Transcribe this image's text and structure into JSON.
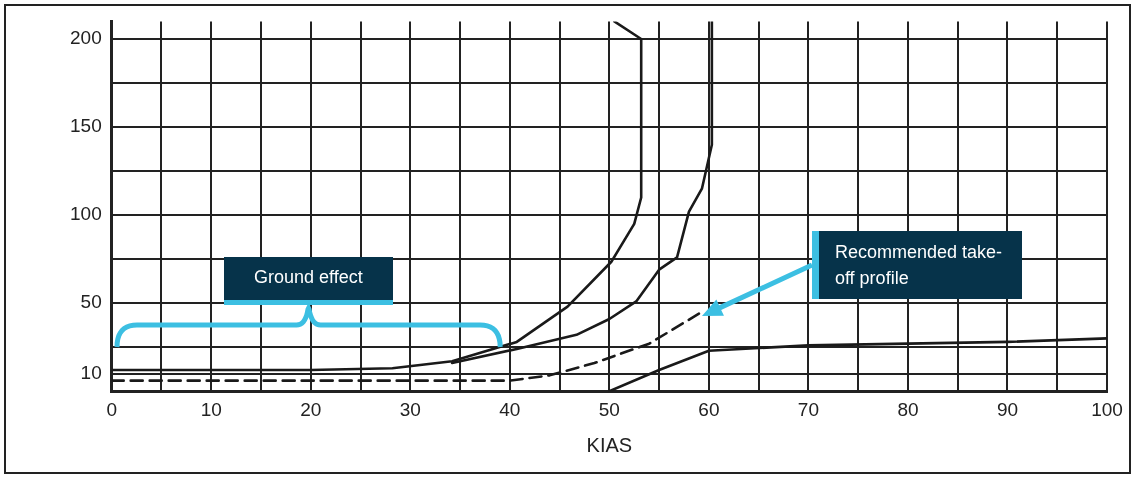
{
  "chart_data": {
    "type": "line",
    "xlabel": "KIAS",
    "xlim": [
      0,
      100
    ],
    "ylim": [
      0,
      210
    ],
    "xticks": [
      0,
      {
        "value": 5,
        "label": null
      },
      10,
      {
        "value": 15,
        "label": null
      },
      20,
      {
        "value": 25,
        "label": null
      },
      30,
      {
        "value": 35,
        "label": null
      },
      40,
      {
        "value": 45,
        "label": null
      },
      50,
      {
        "value": 55,
        "label": null
      },
      60,
      {
        "value": 65,
        "label": null
      },
      70,
      {
        "value": 75,
        "label": null
      },
      80,
      {
        "value": 85,
        "label": null
      },
      90,
      {
        "value": 95,
        "label": null
      },
      100
    ],
    "yticks": [
      {
        "value": 0,
        "label": null
      },
      10,
      {
        "value": 25,
        "label": null
      },
      50,
      {
        "value": 75,
        "label": null
      },
      100,
      {
        "value": 125,
        "label": null
      },
      150,
      {
        "value": 175,
        "label": null
      },
      200
    ],
    "grid": true,
    "legend": false,
    "marker": "none",
    "series": [
      {
        "color": "#1a1a1a",
        "line_style": "solid",
        "x": [
          0,
          10,
          20,
          28.2,
          34.2,
          40.7,
          45.8,
          50.2,
          52.5,
          53.2,
          53.2,
          50.5
        ],
        "values": [
          12,
          12,
          12,
          13,
          17,
          28,
          48,
          73.5,
          95,
          110,
          200,
          210
        ]
      },
      {
        "color": "#1a1a1a",
        "line_style": "solid",
        "x": [
          34.2,
          40.7,
          46.7,
          50,
          52.7,
          55,
          56.8,
          58,
          59.3,
          60.3,
          60.3
        ],
        "values": [
          16,
          24,
          32,
          41,
          51,
          69,
          76,
          102,
          115,
          140,
          210
        ]
      },
      {
        "color": "#1a1a1a",
        "line_style": "dashed",
        "x": [
          0,
          20,
          40,
          44,
          48.5,
          54,
          59
        ],
        "values": [
          6,
          6,
          6,
          9,
          16,
          27,
          44
        ]
      },
      {
        "color": "#1a1a1a",
        "line_style": "solid",
        "x": [
          50,
          55,
          60,
          70,
          80,
          90,
          100
        ],
        "values": [
          0,
          12,
          23,
          26,
          27,
          28,
          30
        ]
      }
    ],
    "annotations": [
      "Ground effect",
      "Recommended take-off profile"
    ]
  }
}
